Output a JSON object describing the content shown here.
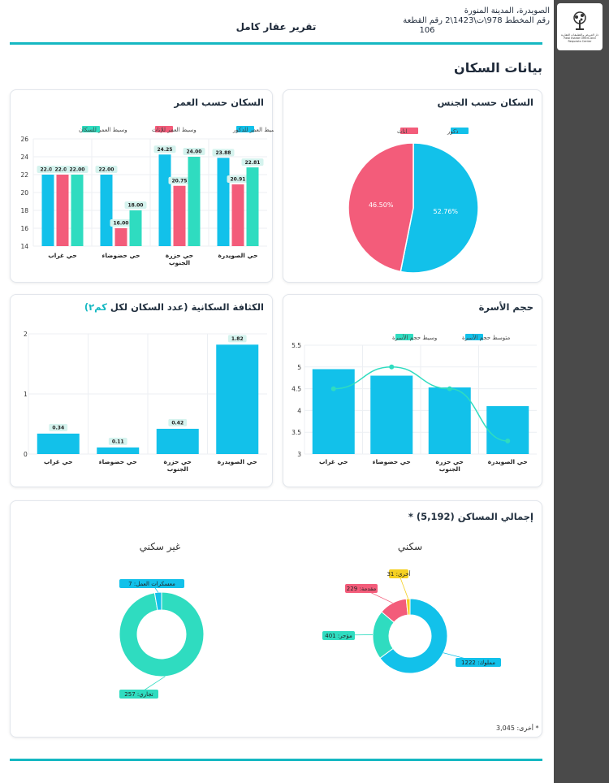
{
  "header": {
    "location": "الصويدرة، المدينة المنورة",
    "plan_line": "رقم المخطط 978\\ت\\1423\\2 رقم القطعة",
    "plot": "106",
    "report_title": "تقرير عقار كامل"
  },
  "logo": {
    "text": "دار العروض والتطبيقات العقارية Real Estate Offers and Requests Center"
  },
  "section": {
    "title": "بيانات السكان"
  },
  "colors": {
    "accent": "#15b8c2",
    "blue": "#12c1ea",
    "pink": "#f35c7a",
    "teal": "#2fdcc0",
    "yellow": "#f5d023"
  },
  "age_card": {
    "title": "السكان حسب العمر",
    "chart_data": {
      "type": "bar",
      "categories": [
        "حي الصويدرة",
        "حي حزرة الجنوب",
        "حي حضوضاء",
        "حي غراب"
      ],
      "series": [
        {
          "name": "وسيط العمر للذكور",
          "color": "#12c1ea",
          "values": [
            23.88,
            24.25,
            22.0,
            22.0
          ]
        },
        {
          "name": "وسيط العمر للإناث",
          "color": "#f35c7a",
          "values": [
            20.91,
            20.75,
            16.0,
            22.0
          ]
        },
        {
          "name": "وسيط العمر للسكان",
          "color": "#2fdcc0",
          "values": [
            22.81,
            24.0,
            18.0,
            22.0
          ]
        }
      ],
      "value_labels": [
        [
          "23.88",
          "20.91",
          "22.81"
        ],
        [
          "24.25",
          "20.75",
          "24.00"
        ],
        [
          "22.00",
          "16.00",
          "18.00"
        ],
        [
          "22.00",
          "22.00",
          "22.00"
        ]
      ],
      "ylim": [
        14,
        26
      ],
      "yticks": [
        "14",
        "16",
        "18",
        "20",
        "22",
        "24",
        "26"
      ]
    }
  },
  "gender_card": {
    "title": "السكان حسب الجنس",
    "chart_data": {
      "type": "pie",
      "labels": [
        "ذكور",
        "اناث"
      ],
      "values": [
        52.76,
        46.5
      ],
      "value_labels": [
        "52.76%",
        "46.50%"
      ],
      "colors": [
        "#12c1ea",
        "#f35c7a"
      ]
    }
  },
  "density_card": {
    "title": "الكثافة السكانية (عدد السكان لكل",
    "unit": "كم٢)",
    "chart_data": {
      "type": "bar",
      "categories": [
        "حي الصويدرة",
        "حي حزرة الجنوب",
        "حي حضوضاء",
        "حي غراب"
      ],
      "values": [
        1.82,
        0.42,
        0.11,
        0.34
      ],
      "value_labels": [
        "1.82",
        "0.42",
        "0.11",
        "0.34"
      ],
      "ylim": [
        0,
        2
      ],
      "yticks": [
        "0",
        "1",
        "2"
      ]
    }
  },
  "family_card": {
    "title": "حجم الأسرة",
    "chart_data": {
      "type": "bar",
      "categories": [
        "حي الصويدرة",
        "حي حزرة الجنوب",
        "حي حضوضاء",
        "حي غراب"
      ],
      "series": [
        {
          "name": "متوسط حجم الأسرة",
          "color": "#12c1ea",
          "kind": "bar",
          "values": [
            4.1,
            4.53,
            4.8,
            4.95
          ]
        },
        {
          "name": "وسيط حجم الأسرة",
          "color": "#2fdcc0",
          "kind": "line",
          "values": [
            3.3,
            4.5,
            5.0,
            4.5
          ]
        }
      ],
      "ylim": [
        3,
        5.5
      ],
      "yticks": [
        "3",
        "3.5",
        "4",
        "4.5",
        "5",
        "5.5"
      ]
    }
  },
  "dwellings_card": {
    "title": "إجمالي المساكن (5,192) *",
    "residential": {
      "title": "سكني",
      "chart_data": {
        "type": "pie",
        "labels": [
          "مملوك",
          "مؤجر",
          "مقدمة",
          "أخرى"
        ],
        "values": [
          1222,
          401,
          229,
          31
        ],
        "value_labels": [
          "مملوك: 1222",
          "مؤجر: 401",
          "مقدمة: 229",
          "أخرى: 31"
        ],
        "colors": [
          "#12c1ea",
          "#2fdcc0",
          "#f35c7a",
          "#f5d023"
        ]
      }
    },
    "non_residential": {
      "title": "غير سكني",
      "chart_data": {
        "type": "pie",
        "labels": [
          "تجاري",
          "معسكرات العمل"
        ],
        "values": [
          257,
          7
        ],
        "value_labels": [
          "تجاري: 257",
          "معسكرات العمل: 7"
        ],
        "colors": [
          "#2fdcc0",
          "#12c1ea"
        ]
      }
    },
    "footnote": "* أخرى: 3,045"
  }
}
